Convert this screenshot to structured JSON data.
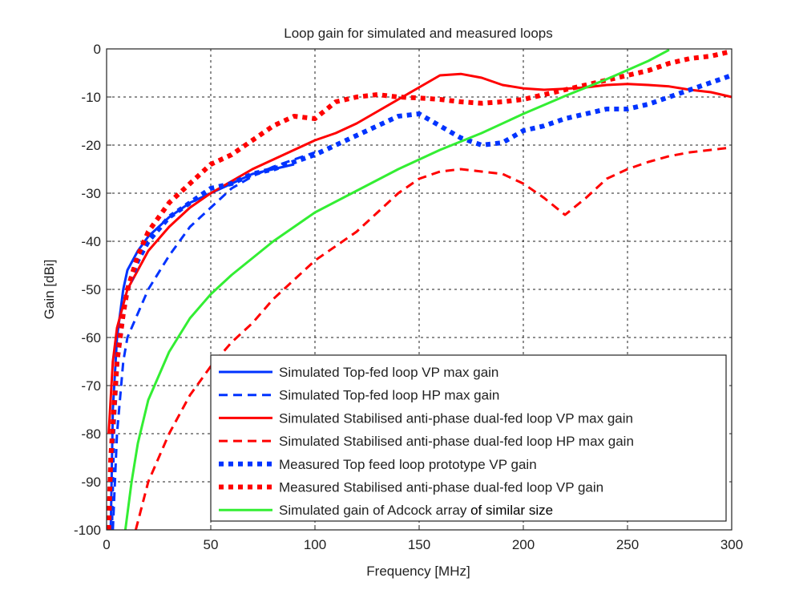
{
  "chart_data": {
    "type": "line",
    "title": "Loop gain for simulated and measured loops",
    "xlabel": "Frequency [MHz]",
    "ylabel": "Gain [dBi]",
    "xlim": [
      0,
      300
    ],
    "ylim": [
      -100,
      0
    ],
    "xticks": [
      0,
      50,
      100,
      150,
      200,
      250,
      300
    ],
    "yticks": [
      0,
      -10,
      -20,
      -30,
      -40,
      -50,
      -60,
      -70,
      -80,
      -90,
      -100
    ],
    "grid": true,
    "legend_position": "bottom-right",
    "series": [
      {
        "name": "Simulated Top-fed loop VP max gain",
        "color": "#0033ff",
        "style": "solid",
        "x": [
          2,
          3,
          5,
          8,
          10,
          15,
          20,
          30,
          40,
          50,
          60,
          70,
          80,
          90
        ],
        "y": [
          -100,
          -75,
          -60,
          -50,
          -46,
          -42,
          -39,
          -35,
          -32,
          -30,
          -28,
          -26,
          -25,
          -24
        ]
      },
      {
        "name": "Simulated Top-fed loop HP max gain",
        "color": "#0033ff",
        "style": "dashed",
        "x": [
          3,
          5,
          8,
          10,
          15,
          20,
          30,
          40,
          50,
          60,
          70,
          80,
          90,
          100
        ],
        "y": [
          -100,
          -80,
          -65,
          -60,
          -55,
          -50,
          -43,
          -37,
          -33,
          -29,
          -26.5,
          -24.5,
          -23,
          -21.5
        ]
      },
      {
        "name": "Simulated Stabilised anti-phase dual-fed loop VP max gain",
        "color": "#ff0000",
        "style": "solid",
        "x": [
          1,
          3,
          5,
          10,
          15,
          20,
          30,
          40,
          50,
          60,
          70,
          80,
          90,
          100,
          110,
          120,
          130,
          140,
          150,
          160,
          170,
          180,
          190,
          200,
          210,
          220,
          230,
          240,
          250,
          260,
          270,
          280,
          290,
          300
        ],
        "y": [
          -80,
          -65,
          -58,
          -50,
          -46,
          -42,
          -37,
          -33,
          -30,
          -27.5,
          -25,
          -23,
          -21,
          -19,
          -17.5,
          -15.5,
          -13,
          -10.5,
          -8,
          -5.5,
          -5.2,
          -6,
          -7.5,
          -8.2,
          -8.5,
          -8.3,
          -8,
          -7.5,
          -7.3,
          -7.5,
          -7.8,
          -8.5,
          -9,
          -10
        ]
      },
      {
        "name": "Simulated Stabilised anti-phase dual-fed loop HP max gain",
        "color": "#ff0000",
        "style": "dashed",
        "x": [
          14,
          20,
          30,
          40,
          50,
          60,
          70,
          80,
          90,
          100,
          110,
          120,
          130,
          140,
          150,
          160,
          170,
          180,
          190,
          200,
          210,
          220,
          230,
          240,
          250,
          260,
          270,
          280,
          290,
          300
        ],
        "y": [
          -100,
          -90,
          -80,
          -72,
          -66,
          -61,
          -57,
          -52,
          -48,
          -44,
          -41,
          -38,
          -34,
          -30,
          -27,
          -25.5,
          -25,
          -25.5,
          -26,
          -28,
          -31,
          -34.5,
          -31,
          -27,
          -25,
          -23.5,
          -22.3,
          -21.5,
          -21,
          -20.5
        ]
      },
      {
        "name": "Measured Top feed loop prototype VP gain",
        "color": "#0033ff",
        "style": "dotted",
        "x": [
          2,
          3,
          5,
          8,
          10,
          15,
          20,
          30,
          40,
          50,
          60,
          70,
          80,
          90,
          100,
          110,
          120,
          130,
          140,
          150,
          160,
          170,
          180,
          190,
          200,
          210,
          220,
          230,
          240,
          250,
          260,
          270,
          280,
          290,
          300
        ],
        "y": [
          -100,
          -80,
          -65,
          -55,
          -50,
          -44,
          -40,
          -35,
          -32,
          -29,
          -28,
          -26,
          -25,
          -23.5,
          -22,
          -20,
          -18,
          -16,
          -14,
          -13.5,
          -16,
          -18.5,
          -20,
          -19.5,
          -17,
          -16,
          -14.5,
          -13.5,
          -12.5,
          -12.5,
          -11.5,
          -10,
          -8.5,
          -7,
          -5.5
        ]
      },
      {
        "name": "Measured Stabilised anti-phase dual-fed loop VP gain",
        "color": "#ff0000",
        "style": "dotted",
        "x": [
          1,
          2,
          5,
          8,
          10,
          15,
          20,
          30,
          40,
          50,
          60,
          70,
          80,
          90,
          100,
          110,
          120,
          130,
          140,
          150,
          160,
          170,
          180,
          190,
          200,
          210,
          220,
          230,
          240,
          250,
          260,
          270,
          280,
          290,
          300
        ],
        "y": [
          -100,
          -85,
          -65,
          -55,
          -50,
          -43,
          -38,
          -32,
          -28,
          -24,
          -22,
          -19,
          -16,
          -14,
          -14.5,
          -11,
          -10,
          -9.5,
          -10,
          -10.2,
          -10.5,
          -11,
          -11.3,
          -11,
          -10.5,
          -9.5,
          -8.5,
          -7.5,
          -6.5,
          -5.5,
          -4.5,
          -3,
          -2,
          -1.5,
          -0.5
        ]
      },
      {
        "name": "Simulated gain of Adcock array",
        "name_suffix": "of similar size",
        "color": "#33ee33",
        "style": "solid",
        "x": [
          9,
          12,
          15,
          20,
          30,
          40,
          50,
          60,
          70,
          80,
          90,
          100,
          120,
          140,
          160,
          180,
          200,
          220,
          240,
          260,
          270
        ],
        "y": [
          -100,
          -90,
          -82,
          -73,
          -63,
          -56,
          -51,
          -47,
          -43.5,
          -40,
          -37,
          -34,
          -29.5,
          -25,
          -21,
          -17.5,
          -13.5,
          -9.8,
          -6.3,
          -2.5,
          -0.2
        ]
      }
    ]
  }
}
